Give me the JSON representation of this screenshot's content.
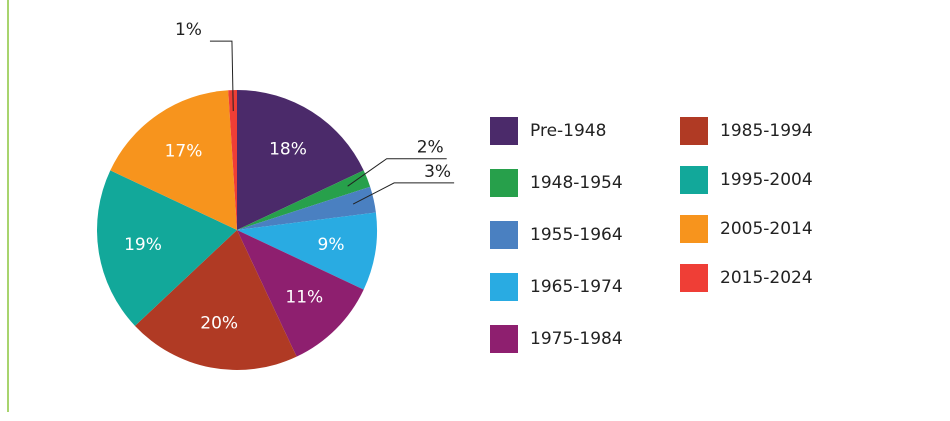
{
  "chart_data": {
    "type": "pie",
    "categories": [
      "Pre-1948",
      "1948-1954",
      "1955-1964",
      "1965-1974",
      "1975-1984",
      "1985-1994",
      "1995-2004",
      "2005-2014",
      "2015-2024"
    ],
    "values": [
      18,
      2,
      3,
      9,
      11,
      20,
      19,
      17,
      1
    ],
    "value_labels": [
      "18%",
      "2%",
      "3%",
      "9%",
      "11%",
      "20%",
      "19%",
      "17%",
      "1%"
    ],
    "colors": [
      "#4b2a6a",
      "#27a04b",
      "#4a80c1",
      "#29abe2",
      "#8e1f6f",
      "#b03a24",
      "#12a89a",
      "#f7941d",
      "#ef3e36"
    ],
    "legend": "right"
  }
}
